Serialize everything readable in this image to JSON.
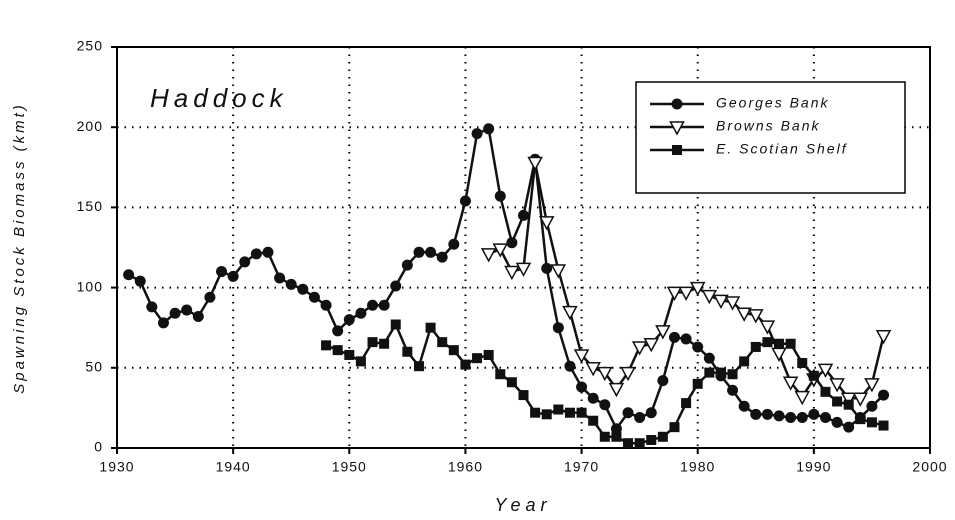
{
  "chart_data": {
    "type": "line",
    "title": "Haddock",
    "x_label": "Year",
    "y_label": "Spawning Stock Biomass (kmt)",
    "xlim": [
      1930,
      2000
    ],
    "xticks": [
      1930,
      1940,
      1950,
      1960,
      1970,
      1980,
      1990,
      2000
    ],
    "ylim": [
      0,
      250
    ],
    "yticks": [
      0,
      50,
      100,
      150,
      200,
      250
    ],
    "grid": true,
    "legend": "upper right",
    "series": [
      {
        "name": "Georges Bank",
        "color": "#111111",
        "marker": "circle",
        "x": [
          1931,
          1932,
          1933,
          1934,
          1935,
          1936,
          1937,
          1938,
          1939,
          1940,
          1941,
          1942,
          1943,
          1944,
          1945,
          1946,
          1947,
          1948,
          1949,
          1950,
          1951,
          1952,
          1953,
          1954,
          1955,
          1956,
          1957,
          1958,
          1959,
          1960,
          1961,
          1962,
          1963,
          1964,
          1965,
          1966,
          1967,
          1968,
          1969,
          1970,
          1971,
          1972,
          1973,
          1974,
          1975,
          1976,
          1977,
          1978,
          1979,
          1980,
          1981,
          1982,
          1983,
          1984,
          1985,
          1986,
          1987,
          1988,
          1989,
          1990,
          1991,
          1992,
          1993,
          1994,
          1995,
          1996
        ],
        "values": [
          108,
          104,
          88,
          78,
          84,
          86,
          82,
          94,
          110,
          107,
          116,
          121,
          122,
          106,
          102,
          99,
          94,
          89,
          73,
          80,
          84,
          89,
          89,
          101,
          114,
          122,
          122,
          119,
          127,
          154,
          196,
          199,
          157,
          128,
          145,
          180,
          112,
          75,
          51,
          38,
          31,
          27,
          12,
          22,
          19,
          22,
          42,
          69,
          68,
          63,
          56,
          45,
          36,
          26,
          21,
          21,
          20,
          19,
          19,
          21,
          19,
          16,
          13,
          19,
          26,
          33
        ]
      },
      {
        "name": "Browns Bank",
        "color": "#111111",
        "marker": "triangle-down",
        "x": [
          1962,
          1963,
          1964,
          1965,
          1966,
          1967,
          1968,
          1969,
          1970,
          1971,
          1972,
          1973,
          1974,
          1975,
          1976,
          1977,
          1978,
          1979,
          1980,
          1981,
          1982,
          1983,
          1984,
          1985,
          1986,
          1987,
          1988,
          1989,
          1990,
          1991,
          1992,
          1993,
          1994,
          1995,
          1996
        ],
        "values": [
          121,
          124,
          110,
          112,
          178,
          141,
          111,
          85,
          58,
          50,
          47,
          37,
          47,
          63,
          65,
          73,
          97,
          97,
          100,
          95,
          92,
          91,
          84,
          83,
          76,
          59,
          41,
          32,
          43,
          49,
          40,
          31,
          31,
          40,
          70
        ]
      },
      {
        "name": "E. Scotian Shelf",
        "color": "#111111",
        "marker": "square",
        "x": [
          1948,
          1949,
          1950,
          1951,
          1952,
          1953,
          1954,
          1955,
          1956,
          1957,
          1958,
          1959,
          1960,
          1961,
          1962,
          1963,
          1964,
          1965,
          1966,
          1967,
          1968,
          1969,
          1970,
          1971,
          1972,
          1973,
          1974,
          1975,
          1976,
          1977,
          1978,
          1979,
          1980,
          1981,
          1982,
          1983,
          1984,
          1985,
          1986,
          1987,
          1988,
          1989,
          1990,
          1991,
          1992,
          1993,
          1994,
          1995,
          1996
        ],
        "values": [
          64,
          61,
          58,
          54,
          66,
          65,
          77,
          60,
          51,
          75,
          66,
          61,
          52,
          56,
          58,
          46,
          41,
          33,
          22,
          21,
          24,
          22,
          22,
          17,
          7,
          7,
          3,
          3,
          5,
          7,
          13,
          28,
          40,
          47,
          47,
          46,
          54,
          63,
          66,
          65,
          65,
          53,
          45,
          35,
          29,
          27,
          18,
          16,
          14
        ]
      }
    ]
  }
}
